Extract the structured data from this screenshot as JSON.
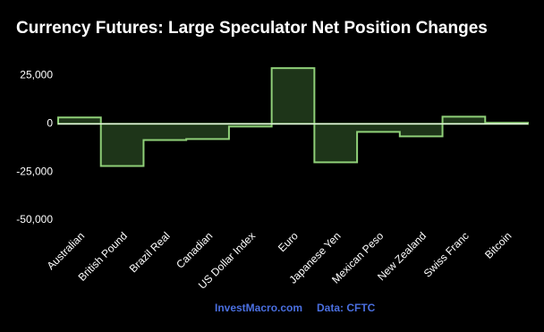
{
  "chart_data": {
    "type": "step-area",
    "title": "Currency Futures: Large Speculator Net Position Changes",
    "categories": [
      "Australian",
      "British Pound",
      "Brazil Real",
      "Canadian",
      "US Dollar Index",
      "Euro",
      "Japanese Yen",
      "Mexican Peso",
      "New Zealand",
      "Swiss Franc",
      "Bitcoin"
    ],
    "values": [
      3300,
      -21900,
      -8400,
      -7900,
      -1400,
      28900,
      -20000,
      -4200,
      -6500,
      3700,
      500
    ],
    "fill": "#1e3519",
    "color": "#8fcf78",
    "ylim": [
      -50000,
      35000
    ],
    "yticks": [
      {
        "value": 25000,
        "label": "25,000"
      },
      0,
      {
        "value": -25000,
        "label": "-25,000"
      },
      {
        "value": -50000,
        "label": "-50,000"
      }
    ],
    "grid": false,
    "zero_line": true,
    "footer": [
      "InvestMacro.com",
      "Data: CFTC"
    ],
    "footer_color": "#4a6fe0"
  }
}
